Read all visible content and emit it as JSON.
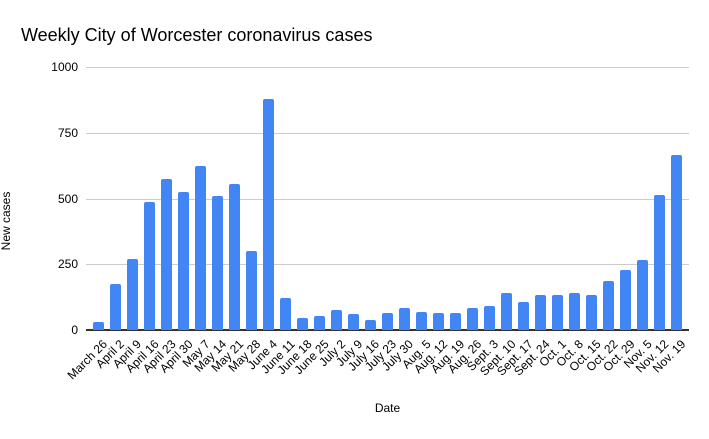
{
  "title": "Weekly City of Worcester coronavirus cases",
  "chart_data": {
    "type": "bar",
    "title": "Weekly City of Worcester coronavirus cases",
    "xlabel": "Date",
    "ylabel": "New cases",
    "ylim": [
      0,
      1000
    ],
    "yticks": [
      0,
      250,
      500,
      750,
      1000
    ],
    "grid": true,
    "legend_position": "none",
    "bar_color": "#4285f4",
    "gridline_color": "#cccccc",
    "axis_line_color": "#333333",
    "text_color": "#000000",
    "background_color": "#ffffff",
    "categories": [
      "March 26",
      "April 2",
      "April 9",
      "April 16",
      "April 23",
      "April 30",
      "May 7",
      "May 14",
      "May 21",
      "May 28",
      "June 4",
      "June 11",
      "June 18",
      "June 25",
      "July 2",
      "July 9",
      "July 16",
      "July 23",
      "July 30",
      "Aug. 5",
      "Aug. 12",
      "Aug. 19",
      "Aug. 26",
      "Sept. 3",
      "Sept. 10",
      "Sept. 17",
      "Sept. 24",
      "Oct. 1",
      "Oct. 8",
      "Oct. 15",
      "Oct. 22",
      "Oct. 29",
      "Nov. 5",
      "Nov. 12",
      "Nov. 19"
    ],
    "values": [
      30,
      175,
      270,
      485,
      575,
      525,
      625,
      510,
      555,
      300,
      880,
      120,
      45,
      55,
      75,
      60,
      40,
      65,
      85,
      70,
      65,
      65,
      85,
      90,
      140,
      105,
      135,
      135,
      140,
      135,
      185,
      230,
      265,
      515,
      665
    ]
  }
}
